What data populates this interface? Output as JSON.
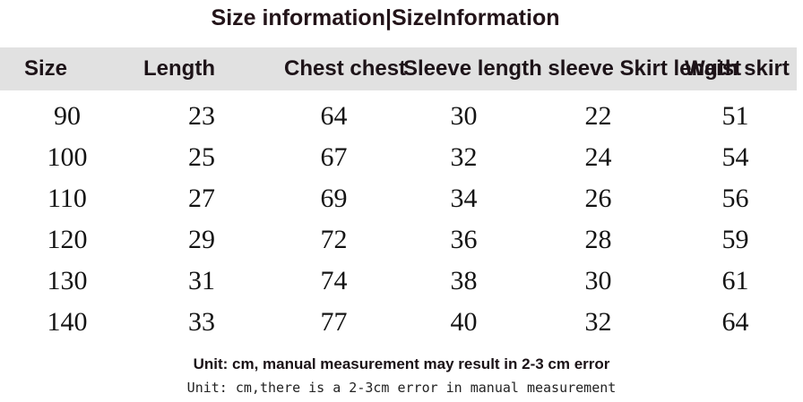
{
  "title": "Size information|SizeInformation",
  "header": {
    "size": "Size",
    "length": "Length",
    "chest": "Chest chest",
    "sleeve_skirt": "Sleeve length sleeve Skirt length skirt",
    "waist": "Waist"
  },
  "notes": {
    "line1": "Unit: cm, manual measurement may result in 2-3 cm error",
    "line2": "Unit: cm,there is a 2-3cm error in manual measurement"
  },
  "colors": {
    "background": "#ffffff",
    "header_bg": "#e1e1e1",
    "title_text": "#231419",
    "number_text": "#141414"
  },
  "chart_data": {
    "type": "table",
    "title": "Size information|SizeInformation",
    "columns": [
      "Size",
      "Length",
      "Chest chest",
      "Sleeve length sleeve",
      "Skirt length skirt",
      "Waist"
    ],
    "rows": [
      [
        "90",
        "23",
        "64",
        "30",
        "22",
        "51"
      ],
      [
        "100",
        "25",
        "67",
        "32",
        "24",
        "54"
      ],
      [
        "110",
        "27",
        "69",
        "34",
        "26",
        "56"
      ],
      [
        "120",
        "29",
        "72",
        "36",
        "28",
        "59"
      ],
      [
        "130",
        "31",
        "74",
        "38",
        "30",
        "61"
      ],
      [
        "140",
        "33",
        "77",
        "40",
        "32",
        "64"
      ]
    ],
    "unit": "cm",
    "footnotes": [
      "Unit: cm, manual measurement may result in 2-3 cm error",
      "Unit: cm,there is a 2-3cm error in manual measurement"
    ],
    "layout": {
      "header_row_merged_columns": "Sleeve length sleeve Skirt length skirt spans columns 4-5",
      "grid": "off"
    }
  }
}
